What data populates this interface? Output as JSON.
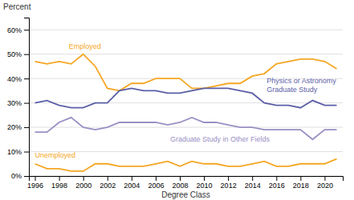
{
  "chart_data": {
    "type": "line",
    "xlabel": "Degree Class",
    "ylabel": "Percent",
    "x": [
      1996,
      1997,
      1998,
      1999,
      2000,
      2001,
      2002,
      2003,
      2004,
      2005,
      2006,
      2007,
      2008,
      2009,
      2010,
      2011,
      2012,
      2013,
      2014,
      2015,
      2016,
      2017,
      2018,
      2019,
      2020,
      2021
    ],
    "series": [
      {
        "name": "Employed",
        "color": "#f5a623",
        "values": [
          0.47,
          0.46,
          0.47,
          0.46,
          0.5,
          0.45,
          0.36,
          0.35,
          0.38,
          0.38,
          0.4,
          0.4,
          0.4,
          0.36,
          0.36,
          0.37,
          0.38,
          0.38,
          0.41,
          0.42,
          0.46,
          0.47,
          0.48,
          0.48,
          0.47,
          0.44
        ]
      },
      {
        "name": "Physics or Astronomy\nGraduate Study",
        "color": "#5b5ea6",
        "values": [
          0.3,
          0.31,
          0.29,
          0.28,
          0.28,
          0.3,
          0.3,
          0.35,
          0.36,
          0.35,
          0.35,
          0.34,
          0.34,
          0.35,
          0.36,
          0.36,
          0.36,
          0.35,
          0.34,
          0.3,
          0.29,
          0.29,
          0.28,
          0.31,
          0.29,
          0.29
        ]
      },
      {
        "name": "Graduate Study in Other Fields",
        "color": "#9b8ec4",
        "values": [
          0.18,
          0.18,
          0.22,
          0.24,
          0.2,
          0.19,
          0.2,
          0.22,
          0.22,
          0.22,
          0.22,
          0.21,
          0.22,
          0.24,
          0.22,
          0.22,
          0.21,
          0.2,
          0.2,
          0.19,
          0.19,
          0.19,
          0.19,
          0.15,
          0.19,
          0.19
        ]
      },
      {
        "name": "Unemployed",
        "color": "#f5a623",
        "values": [
          0.05,
          0.03,
          0.03,
          0.02,
          0.02,
          0.05,
          0.05,
          0.04,
          0.04,
          0.04,
          0.05,
          0.06,
          0.04,
          0.06,
          0.05,
          0.05,
          0.04,
          0.04,
          0.05,
          0.06,
          0.04,
          0.04,
          0.05,
          0.05,
          0.05,
          0.07
        ]
      }
    ],
    "xlim": [
      1995.5,
      2021.5
    ],
    "xticks": [
      1996,
      1998,
      2000,
      2002,
      2004,
      2006,
      2008,
      2010,
      2012,
      2014,
      2016,
      2018,
      2020
    ],
    "ylim": [
      0,
      0.65
    ],
    "yticks": [
      {
        "value": 0,
        "label": "0%"
      },
      {
        "value": 0.1,
        "label": "10%"
      },
      {
        "value": 0.2,
        "label": "20%"
      },
      {
        "value": 0.3,
        "label": "30%"
      },
      {
        "value": 0.4,
        "label": "40%"
      },
      {
        "value": 0.5,
        "label": "50%"
      },
      {
        "value": 0.6,
        "label": "60%"
      }
    ],
    "grid": true
  }
}
